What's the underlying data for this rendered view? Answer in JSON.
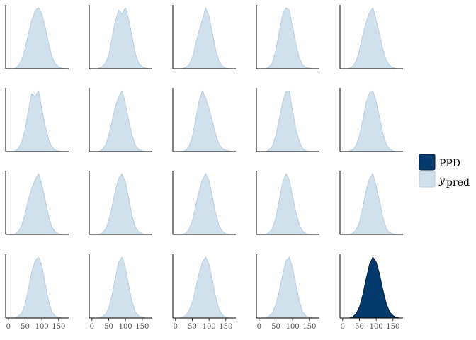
{
  "chart_data": {
    "type": "area",
    "layout": "small-multiples grid, 4 rows by 5 columns",
    "x_ticks": [
      0,
      50,
      100,
      150
    ],
    "xlim": [
      -8,
      180
    ],
    "legend": {
      "position": "right",
      "entries": [
        {
          "label": "PPD",
          "color": "#053b6c",
          "stroke": "#011f3b"
        },
        {
          "label": "y",
          "subscript": "pred",
          "color": "#d1e1ec",
          "stroke": "#b3cde0"
        }
      ]
    },
    "colors": {
      "ypred_fill": "#d1e1ec",
      "ypred_stroke": "#b3cde0",
      "ppd_fill": "#053b6c",
      "ppd_stroke": "#011f3b",
      "axis": "#000000"
    },
    "grid": false,
    "series_x": [
      20,
      30,
      40,
      50,
      60,
      70,
      80,
      90,
      100,
      110,
      120,
      130,
      140,
      150,
      160,
      170
    ],
    "panels": [
      {
        "kind": "ypred",
        "density": [
          0.01,
          0.05,
          0.15,
          0.33,
          0.58,
          0.8,
          0.95,
          1.0,
          0.9,
          0.68,
          0.42,
          0.2,
          0.08,
          0.03,
          0.01,
          0.0
        ]
      },
      {
        "kind": "ypred",
        "density": [
          0.01,
          0.03,
          0.09,
          0.22,
          0.5,
          0.78,
          0.96,
          0.9,
          1.0,
          0.8,
          0.52,
          0.24,
          0.08,
          0.03,
          0.01,
          0.0
        ]
      },
      {
        "kind": "ypred",
        "density": [
          0.0,
          0.02,
          0.06,
          0.18,
          0.4,
          0.62,
          0.8,
          1.0,
          0.86,
          0.58,
          0.3,
          0.12,
          0.04,
          0.01,
          0.0,
          0.0
        ]
      },
      {
        "kind": "ypred",
        "density": [
          0.0,
          0.03,
          0.1,
          0.3,
          0.6,
          0.88,
          1.0,
          0.96,
          0.68,
          0.4,
          0.18,
          0.06,
          0.02,
          0.01,
          0.0,
          0.0
        ]
      },
      {
        "kind": "ypred",
        "density": [
          0.01,
          0.04,
          0.12,
          0.3,
          0.55,
          0.76,
          0.92,
          1.0,
          0.8,
          0.56,
          0.32,
          0.14,
          0.05,
          0.02,
          0.0,
          0.0
        ]
      },
      {
        "kind": "ypred",
        "density": [
          0.01,
          0.05,
          0.16,
          0.36,
          0.68,
          0.95,
          0.9,
          1.0,
          0.7,
          0.42,
          0.2,
          0.08,
          0.02,
          0.01,
          0.0,
          0.0
        ]
      },
      {
        "kind": "ypred",
        "density": [
          0.0,
          0.03,
          0.1,
          0.26,
          0.5,
          0.74,
          0.9,
          1.0,
          0.78,
          0.5,
          0.26,
          0.1,
          0.03,
          0.01,
          0.0,
          0.0
        ]
      },
      {
        "kind": "ypred",
        "density": [
          0.0,
          0.02,
          0.08,
          0.24,
          0.52,
          0.82,
          1.0,
          0.88,
          0.7,
          0.5,
          0.28,
          0.12,
          0.05,
          0.02,
          0.01,
          0.0
        ]
      },
      {
        "kind": "ypred",
        "density": [
          0.0,
          0.03,
          0.09,
          0.26,
          0.54,
          0.8,
          0.98,
          1.0,
          0.66,
          0.36,
          0.16,
          0.05,
          0.01,
          0.0,
          0.0,
          0.0
        ]
      },
      {
        "kind": "ypred",
        "density": [
          0.01,
          0.03,
          0.1,
          0.26,
          0.52,
          0.8,
          0.96,
          1.0,
          0.82,
          0.56,
          0.3,
          0.12,
          0.04,
          0.01,
          0.0,
          0.0
        ]
      },
      {
        "kind": "ypred",
        "density": [
          0.01,
          0.05,
          0.15,
          0.34,
          0.58,
          0.76,
          0.9,
          1.0,
          0.82,
          0.56,
          0.3,
          0.12,
          0.04,
          0.01,
          0.0,
          0.0
        ]
      },
      {
        "kind": "ypred",
        "density": [
          0.0,
          0.02,
          0.08,
          0.22,
          0.46,
          0.72,
          0.92,
          1.0,
          0.86,
          0.58,
          0.3,
          0.12,
          0.04,
          0.01,
          0.0,
          0.0
        ]
      },
      {
        "kind": "ypred",
        "density": [
          0.0,
          0.02,
          0.08,
          0.22,
          0.46,
          0.7,
          0.9,
          1.0,
          0.88,
          0.62,
          0.34,
          0.14,
          0.05,
          0.01,
          0.0,
          0.0
        ]
      },
      {
        "kind": "ypred",
        "density": [
          0.0,
          0.03,
          0.1,
          0.28,
          0.56,
          0.84,
          1.0,
          0.9,
          0.62,
          0.36,
          0.16,
          0.05,
          0.01,
          0.0,
          0.0,
          0.0
        ]
      },
      {
        "kind": "ypred",
        "density": [
          0.0,
          0.02,
          0.07,
          0.2,
          0.44,
          0.72,
          0.92,
          1.0,
          0.8,
          0.54,
          0.28,
          0.1,
          0.03,
          0.01,
          0.0,
          0.0
        ]
      },
      {
        "kind": "ypred",
        "density": [
          0.0,
          0.03,
          0.08,
          0.22,
          0.48,
          0.76,
          0.94,
          1.0,
          0.86,
          0.56,
          0.28,
          0.1,
          0.03,
          0.01,
          0.0,
          0.0
        ]
      },
      {
        "kind": "ypred",
        "density": [
          0.0,
          0.02,
          0.06,
          0.16,
          0.38,
          0.66,
          0.92,
          1.0,
          0.82,
          0.52,
          0.26,
          0.1,
          0.03,
          0.01,
          0.0,
          0.0
        ]
      },
      {
        "kind": "ypred",
        "density": [
          0.01,
          0.04,
          0.12,
          0.26,
          0.48,
          0.72,
          0.92,
          1.0,
          0.88,
          0.62,
          0.34,
          0.14,
          0.05,
          0.01,
          0.0,
          0.0
        ]
      },
      {
        "kind": "ypred",
        "density": [
          0.0,
          0.03,
          0.09,
          0.22,
          0.44,
          0.7,
          0.94,
          1.0,
          0.82,
          0.54,
          0.28,
          0.1,
          0.03,
          0.01,
          0.0,
          0.0
        ]
      },
      {
        "kind": "ppd",
        "density": [
          0.0,
          0.02,
          0.07,
          0.18,
          0.38,
          0.64,
          0.88,
          1.0,
          0.92,
          0.72,
          0.46,
          0.24,
          0.1,
          0.04,
          0.01,
          0.0
        ]
      }
    ]
  }
}
